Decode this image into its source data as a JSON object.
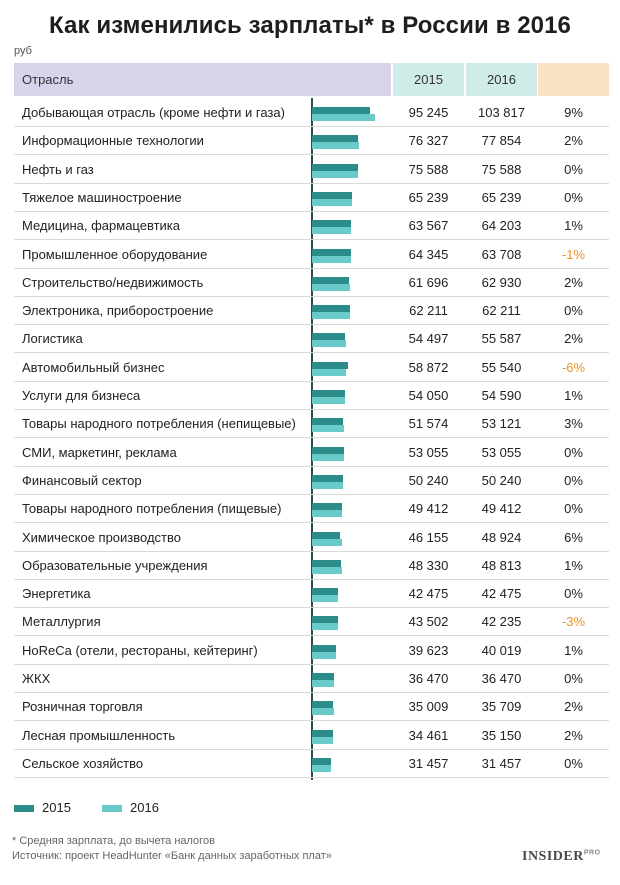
{
  "title": "Как изменились зарплаты* в России в 2016",
  "unit": "руб",
  "header": {
    "sector": "Отрасль",
    "y2015": "2015",
    "y2016": "2016",
    "change": ""
  },
  "colors": {
    "s2015": "#2c8c8a",
    "s2016": "#68cbc9",
    "negative": "#f0922b"
  },
  "legend": {
    "s2015": "2015",
    "s2016": "2016"
  },
  "footnote": {
    "note": "* Средняя зарплата, до вычета налогов",
    "source": "Источник: проект HeadHunter «Банк данных заработных плат»"
  },
  "brand": {
    "name": "INSIDER",
    "suffix": "PRO"
  },
  "chart_data": {
    "type": "bar",
    "orientation": "horizontal",
    "categories": [
      "Добывающая отрасль (кроме нефти и газа)",
      "Информационные технологии",
      "Нефть и газ",
      "Тяжелое машиностроение",
      "Медицина, фармацевтика",
      "Промышленное оборудование",
      "Строительство/недвижимость",
      "Электроника, приборостроение",
      "Логистика",
      "Автомобильный бизнес",
      "Услуги для бизнеса",
      "Товары народного потребления (непищевые)",
      "СМИ, маркетинг, реклама",
      "Финансовый сектор",
      "Товары народного потребления (пищевые)",
      "Химическое производство",
      "Образовательные учреждения",
      "Энергетика",
      "Металлургия",
      "HoReCa (отели, рестораны, кейтеринг)",
      "ЖКХ",
      "Розничная торговля",
      "Лесная промышленность",
      "Сельское хозяйство"
    ],
    "series": [
      {
        "name": "2015",
        "values": [
          95245,
          76327,
          75588,
          65239,
          63567,
          64345,
          61696,
          62211,
          54497,
          58872,
          54050,
          51574,
          53055,
          50240,
          49412,
          46155,
          48330,
          42475,
          43502,
          39623,
          36470,
          35009,
          34461,
          31457
        ]
      },
      {
        "name": "2016",
        "values": [
          103817,
          77854,
          75588,
          65239,
          64203,
          63708,
          62930,
          62211,
          55587,
          55540,
          54590,
          53121,
          53055,
          50240,
          49412,
          48924,
          48813,
          42475,
          42235,
          40019,
          36470,
          35709,
          35150,
          31457
        ]
      }
    ],
    "value_labels_2015": [
      "95 245",
      "76 327",
      "75 588",
      "65 239",
      "63 567",
      "64 345",
      "61 696",
      "62 211",
      "54 497",
      "58 872",
      "54 050",
      "51 574",
      "53 055",
      "50 240",
      "49 412",
      "46 155",
      "48 330",
      "42 475",
      "43 502",
      "39 623",
      "36 470",
      "35 009",
      "34 461",
      "31 457"
    ],
    "value_labels_2016": [
      "103 817",
      "77 854",
      "75 588",
      "65 239",
      "64 203",
      "63 708",
      "62 930",
      "62 211",
      "55 587",
      "55 540",
      "54 590",
      "53 121",
      "53 055",
      "50 240",
      "49 412",
      "48 924",
      "48 813",
      "42 475",
      "42 235",
      "40 019",
      "36 470",
      "35 709",
      "35 150",
      "31 457"
    ],
    "change": [
      "9%",
      "2%",
      "0%",
      "0%",
      "1%",
      "-1%",
      "2%",
      "0%",
      "2%",
      "-6%",
      "1%",
      "3%",
      "0%",
      "0%",
      "0%",
      "6%",
      "1%",
      "0%",
      "-3%",
      "1%",
      "0%",
      "2%",
      "2%",
      "0%"
    ],
    "xlim": [
      0,
      110000
    ],
    "legend_position": "bottom-left"
  }
}
